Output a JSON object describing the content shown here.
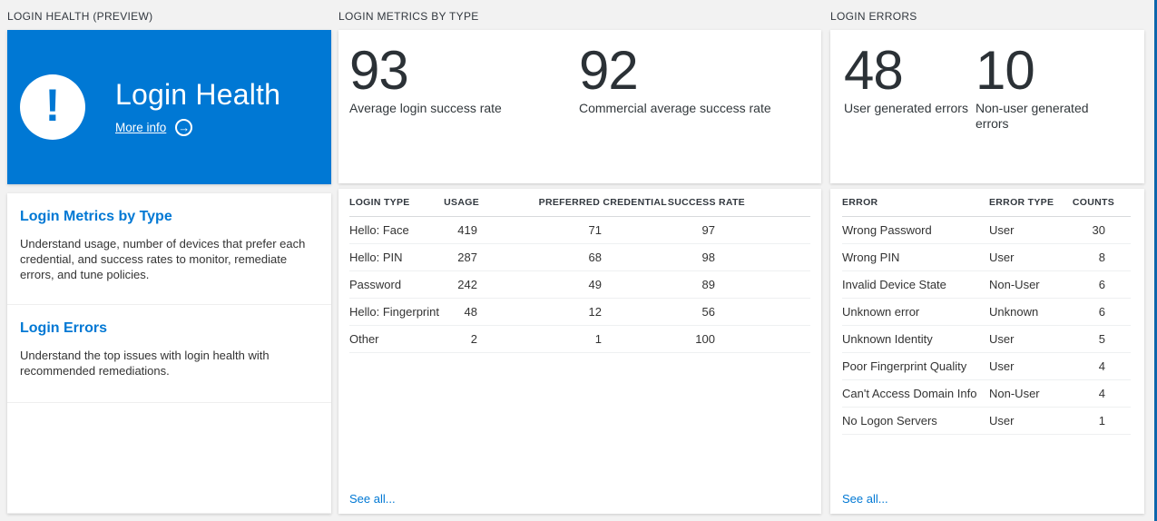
{
  "colors": {
    "accent": "#0078d4",
    "tile_background": "#0078d4",
    "page_background": "#f2f2f2",
    "stat_number": "#2b3136",
    "link": "#0078d4"
  },
  "panels": {
    "login_health": {
      "header": "LOGIN HEALTH (PREVIEW)",
      "tile": {
        "title": "Login Health",
        "more_info_label": "More info",
        "alert_icon_glyph": "!",
        "arrow_icon_glyph": "→"
      },
      "nav_items": [
        {
          "title": "Login Metrics by Type",
          "description": "Understand usage, number of devices that prefer each credential, and success rates to monitor, remediate errors, and tune policies."
        },
        {
          "title": "Login Errors",
          "description": "Understand the top issues with login health with recommended remediations."
        }
      ]
    },
    "login_metrics": {
      "header": "LOGIN METRICS BY TYPE",
      "stats": [
        {
          "value": "93",
          "label": "Average login success rate"
        },
        {
          "value": "92",
          "label": "Commercial average success rate"
        }
      ],
      "table": {
        "columns": [
          "LOGIN TYPE",
          "USAGE",
          "PREFERRED CREDENTIAL",
          "SUCCESS RATE"
        ],
        "rows": [
          [
            "Hello: Face",
            "419",
            "71",
            "97"
          ],
          [
            "Hello: PIN",
            "287",
            "68",
            "98"
          ],
          [
            "Password",
            "242",
            "49",
            "89"
          ],
          [
            "Hello: Fingerprint",
            "48",
            "12",
            "56"
          ],
          [
            "Other",
            "2",
            "1",
            "100"
          ]
        ]
      },
      "see_all_label": "See all..."
    },
    "login_errors": {
      "header": "LOGIN ERRORS",
      "stats": [
        {
          "value": "48",
          "label": "User generated errors"
        },
        {
          "value": "10",
          "label": "Non-user generated errors"
        }
      ],
      "table": {
        "columns": [
          "ERROR",
          "ERROR TYPE",
          "COUNTS"
        ],
        "rows": [
          [
            "Wrong Password",
            "User",
            "30"
          ],
          [
            "Wrong PIN",
            "User",
            "8"
          ],
          [
            "Invalid Device State",
            "Non-User",
            "6"
          ],
          [
            "Unknown error",
            "Unknown",
            "6"
          ],
          [
            "Unknown Identity",
            "User",
            "5"
          ],
          [
            "Poor Fingerprint Quality",
            "User",
            "4"
          ],
          [
            "Can't Access Domain Info",
            "Non-User",
            "4"
          ],
          [
            "No Logon Servers",
            "User",
            "1"
          ]
        ]
      },
      "see_all_label": "See all..."
    }
  }
}
